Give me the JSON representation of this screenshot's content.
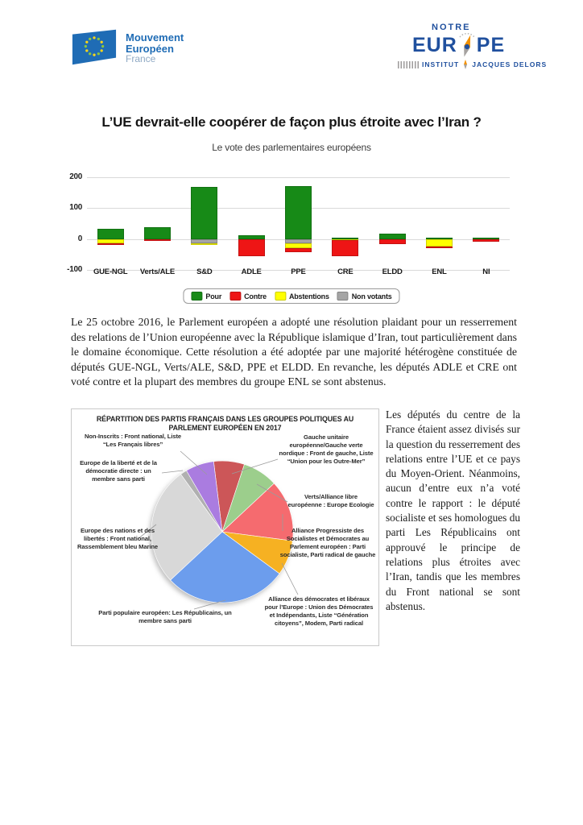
{
  "header": {
    "left_logo": {
      "line1": "Mouvement",
      "line2": "Européen",
      "line3": "France"
    },
    "right_logo": {
      "notre": "NOTRE",
      "eur": "EUR",
      "pe": "PE",
      "institut": "INSTITUT",
      "jacques_delors": "JACQUES DELORS"
    }
  },
  "title": "L’UE devrait-elle coopérer de façon plus étroite avec l’Iran ?",
  "subtitle": "Le vote des parlementaires européens",
  "paragraph1": "Le 25 octobre 2016, le Parlement européen a adopté une résolution plaidant pour un resserrement des relations de l’Union européenne avec la République islamique d’Iran, tout particulièrement dans le domaine économique. Cette résolution a été adoptée par une majorité hétérogène constituée de députés GUE-NGL, Verts/ALE, S&D, PPE et ELDD. En revanche, les députés ADLE et CRE ont voté contre et la plupart des membres du groupe ENL se sont abstenus.",
  "side_paragraph": "Les députés du centre de la France étaient assez divisés sur la question du resserrement des relations entre l’UE et ce pays du Moyen-Orient. Néanmoins, aucun d’entre eux n’a voté contre le rapport : le député socialiste et ses homologues du parti Les Républicains ont approuvé le principe de relations plus étroites avec l’Iran, tandis que les membres du Front national se sont abstenus.",
  "chart_data": [
    {
      "type": "bar",
      "subtype": "stacked_diverging",
      "title": "Le vote des parlementaires européens",
      "categories": [
        "GUE-NGL",
        "Verts/ALE",
        "S&D",
        "ADLE",
        "PPE",
        "CRE",
        "ELDD",
        "ENL",
        "NI"
      ],
      "values": [
        {
          "pour": 33,
          "contre": 4,
          "abstentions": 13,
          "non_votants": 0
        },
        {
          "pour": 38,
          "contre": 6,
          "abstentions": 0,
          "non_votants": 0
        },
        {
          "pour": 168,
          "contre": 0,
          "abstentions": 6,
          "non_votants": 13
        },
        {
          "pour": 12,
          "contre": 55,
          "abstentions": 0,
          "non_votants": 0
        },
        {
          "pour": 172,
          "contre": 13,
          "abstentions": 16,
          "non_votants": 13
        },
        {
          "pour": 5,
          "contre": 52,
          "abstentions": 3,
          "non_votants": 0
        },
        {
          "pour": 18,
          "contre": 16,
          "abstentions": 0,
          "non_votants": 0
        },
        {
          "pour": 4,
          "contre": 4,
          "abstentions": 25,
          "non_votants": 0
        },
        {
          "pour": 4,
          "contre": 8,
          "abstentions": 0,
          "non_votants": 0
        }
      ],
      "colors": {
        "pour": "#178a17",
        "contre": "#ee1515",
        "abstentions": "#ffff00",
        "non_votants": "#a5a5a5"
      },
      "legend": [
        {
          "key": "pour",
          "label": "Pour"
        },
        {
          "key": "contre",
          "label": "Contre"
        },
        {
          "key": "abstentions",
          "label": "Abstentions"
        },
        {
          "key": "non_votants",
          "label": "Non votants"
        }
      ],
      "ylim": [
        -100,
        200
      ],
      "yticks": [
        200,
        100,
        0,
        -100
      ],
      "grid": true,
      "legend_position": "bottom"
    },
    {
      "type": "pie",
      "title": "RÉPARTITION DES PARTIS FRANÇAIS DANS LES GROUPES POLITIQUES AU PARLEMENT EUROPÉEN EN 2017",
      "start_angle_deg": -7,
      "slices": [
        {
          "label": "Gauche unitaire européenne/Gauche verte nordique : Front de gauche, Liste “Union pour les Outre-Mer”",
          "pct": 7,
          "color": "#cc5658"
        },
        {
          "label": "Verts/Alliance libre européenne : Europe Ecologie",
          "pct": 8,
          "color": "#9cce8c"
        },
        {
          "label": "Alliance Progressiste des Socialistes et Démocrates au Parlement européen : Parti socialiste, Parti radical de gauche",
          "pct": 14,
          "color": "#f56b6f"
        },
        {
          "label": "Alliance des démocrates et libéraux pour l’Europe : Union des Démocrates et Indépendants, Liste “Génération citoyens”, Modem, Parti radical",
          "pct": 8,
          "color": "#f6b122"
        },
        {
          "label": "Parti populaire européen: Les Républicains, un membre sans parti",
          "pct": 28,
          "color": "#6c9ded"
        },
        {
          "label": "Europe des nations et des libertés : Front national, Rassemblement bleu Marine",
          "pct": 27,
          "color": "#d8d8d8"
        },
        {
          "label": "Europe de la liberté et de la démocratie directe : un membre sans parti",
          "pct": 1.5,
          "color": "#b0b0b0"
        },
        {
          "label": "Non-Inscrits : Front national, Liste “Les Français libres”",
          "pct": 6.5,
          "color": "#aa7ce0"
        }
      ]
    }
  ]
}
